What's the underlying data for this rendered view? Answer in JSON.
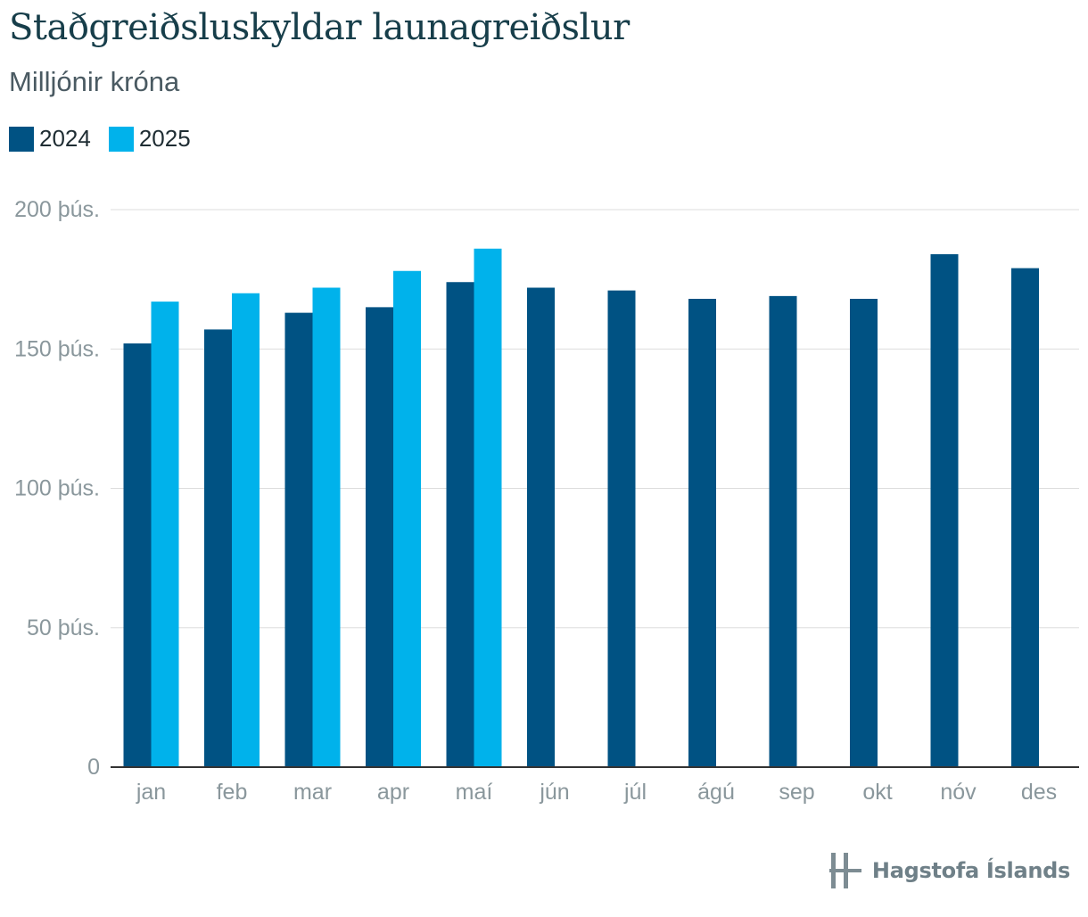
{
  "header": {
    "title": "Staðgreiðsluskyldar launagreiðslur",
    "subtitle": "Milljónir króna"
  },
  "legend": [
    {
      "label": "2024",
      "color": "#005283"
    },
    {
      "label": "2025",
      "color": "#00b2eb"
    }
  ],
  "chart_data": {
    "type": "bar",
    "categories": [
      "jan",
      "feb",
      "mar",
      "apr",
      "maí",
      "jún",
      "júl",
      "ágú",
      "sep",
      "okt",
      "nóv",
      "des"
    ],
    "series": [
      {
        "name": "2024",
        "color": "#005283",
        "values": [
          152000,
          157000,
          163000,
          165000,
          174000,
          172000,
          171000,
          168000,
          169000,
          168000,
          184000,
          179000
        ]
      },
      {
        "name": "2025",
        "color": "#00b2eb",
        "values": [
          167000,
          170000,
          172000,
          178000,
          186000,
          null,
          null,
          null,
          null,
          null,
          null,
          null
        ]
      }
    ],
    "ylim": [
      0,
      200000
    ],
    "yticks": [
      {
        "value": 0,
        "label": "0"
      },
      {
        "value": 50000,
        "label": "50 þús."
      },
      {
        "value": 100000,
        "label": "100 þús."
      },
      {
        "value": 150000,
        "label": "150 þús."
      },
      {
        "value": 200000,
        "label": "200 þús."
      }
    ],
    "grid": true
  },
  "logo": {
    "text": "Hagstofa Íslands",
    "icon": "hagstofa-logo-icon"
  }
}
